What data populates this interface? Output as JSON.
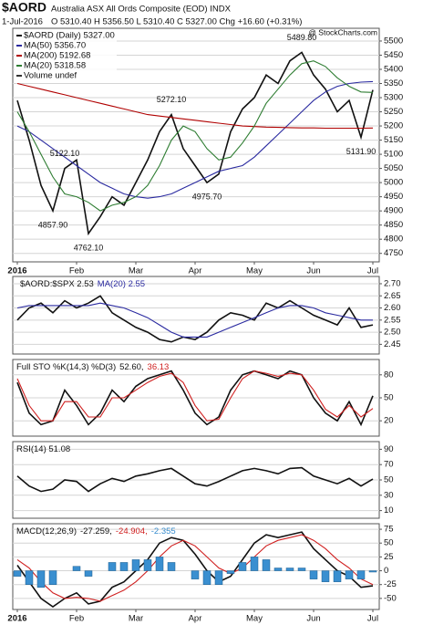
{
  "chart_data": [
    {
      "type": "line",
      "title": "$AORD",
      "subtitle": "Australia ASX All Ords Composite (EOD) INDX",
      "date": "1-Jul-2016",
      "quote": "O 5310.40 H 5356.50 L 5310.40 C 5327.00 Chg +16.60 (+0.31%)",
      "watermark": "@ StockCharts.com",
      "legend": "stack",
      "legend_extra": "Volume undef",
      "annotations": [
        "4857.90",
        "4762.10",
        "5122.10",
        "5272.10",
        "4975.70",
        "5489.80",
        "5131.90"
      ],
      "categories": [
        "2016",
        null,
        null,
        null,
        null,
        "Feb",
        null,
        null,
        null,
        null,
        "Mar",
        null,
        null,
        null,
        null,
        "Apr",
        null,
        null,
        null,
        null,
        "May",
        null,
        null,
        null,
        null,
        "Jun",
        null,
        null,
        null,
        null,
        "Jul"
      ],
      "ylim": [
        4720,
        5545
      ],
      "yticks": [
        4750,
        4800,
        4850,
        4900,
        4950,
        5000,
        5050,
        5100,
        5150,
        5200,
        5250,
        5300,
        5350,
        5400,
        5450,
        5500
      ],
      "grid": true,
      "series": [
        {
          "name": "$AORD (Daily) 5327.00",
          "color": "#111111",
          "values": [
            5290,
            5150,
            4990,
            4900,
            5050,
            5080,
            4820,
            4880,
            4950,
            4920,
            5000,
            5080,
            5180,
            5240,
            5120,
            5060,
            5000,
            5030,
            5180,
            5260,
            5300,
            5380,
            5350,
            5430,
            5460,
            5380,
            5330,
            5250,
            5290,
            5160,
            5327
          ]
        },
        {
          "name": "MA(50) 5356.70",
          "color": "#2a2aa0",
          "values": [
            5200,
            5180,
            5150,
            5120,
            5090,
            5060,
            5030,
            5000,
            4980,
            4960,
            4950,
            4945,
            4950,
            4960,
            4980,
            5000,
            5020,
            5040,
            5050,
            5060,
            5090,
            5130,
            5170,
            5210,
            5250,
            5290,
            5320,
            5340,
            5350,
            5355,
            5356.7
          ]
        },
        {
          "name": "MA(200) 5192.68",
          "color": "#b00000",
          "values": [
            5350,
            5340,
            5330,
            5320,
            5310,
            5300,
            5290,
            5280,
            5270,
            5260,
            5250,
            5240,
            5235,
            5230,
            5225,
            5220,
            5215,
            5210,
            5205,
            5200,
            5198,
            5196,
            5195,
            5194,
            5193,
            5193,
            5192,
            5192,
            5192,
            5192,
            5192.68
          ]
        },
        {
          "name": "MA(20) 5318.58",
          "color": "#2e7d32",
          "values": [
            5250,
            5180,
            5100,
            5020,
            4960,
            4950,
            4930,
            4900,
            4920,
            4930,
            4950,
            4990,
            5060,
            5150,
            5200,
            5180,
            5120,
            5080,
            5090,
            5140,
            5200,
            5280,
            5330,
            5380,
            5420,
            5430,
            5410,
            5370,
            5340,
            5320,
            5318.58
          ]
        }
      ]
    },
    {
      "type": "line",
      "legend": "inline",
      "ylim": [
        2.41,
        2.73
      ],
      "yticks": [
        2.45,
        {
          "value": 2.5,
          "label": "2.50"
        },
        2.55,
        {
          "value": 2.6,
          "label": "2.60"
        },
        2.65,
        {
          "value": 2.7,
          "label": "2.70"
        }
      ],
      "grid": true,
      "series": [
        {
          "name": "$AORD:$SPX 2.53",
          "color": "#111111",
          "values": [
            2.55,
            2.6,
            2.62,
            2.58,
            2.63,
            2.6,
            2.62,
            2.65,
            2.58,
            2.55,
            2.52,
            2.5,
            2.47,
            2.46,
            2.48,
            2.47,
            2.5,
            2.55,
            2.58,
            2.57,
            2.55,
            2.62,
            2.6,
            2.63,
            2.6,
            2.57,
            2.55,
            2.53,
            2.6,
            2.52,
            2.53
          ]
        },
        {
          "name": "MA(20) 2.55",
          "color": "#2a2aa0",
          "values": [
            2.6,
            2.61,
            2.61,
            2.61,
            2.61,
            2.61,
            2.61,
            2.62,
            2.61,
            2.6,
            2.58,
            2.56,
            2.53,
            2.5,
            2.48,
            2.48,
            2.48,
            2.5,
            2.52,
            2.54,
            2.56,
            2.58,
            2.6,
            2.61,
            2.61,
            2.6,
            2.58,
            2.57,
            2.56,
            2.55,
            2.55
          ]
        }
      ]
    },
    {
      "type": "line",
      "title": "Full STO %K(14,3) %D(3)",
      "legend": "inline",
      "ylim": [
        0,
        100
      ],
      "yticks": [
        20,
        50,
        80
      ],
      "grid": true,
      "series": [
        {
          "name": "52.60,",
          "color": "#111111",
          "values": [
            70,
            30,
            15,
            20,
            60,
            40,
            15,
            30,
            60,
            45,
            65,
            75,
            80,
            85,
            60,
            30,
            15,
            25,
            60,
            80,
            85,
            80,
            75,
            85,
            80,
            50,
            30,
            20,
            45,
            15,
            52.6
          ]
        },
        {
          "name": "36.13",
          "color": "#d02020",
          "values": [
            75,
            40,
            20,
            20,
            45,
            45,
            25,
            25,
            50,
            50,
            60,
            70,
            78,
            82,
            70,
            40,
            20,
            22,
            50,
            75,
            85,
            82,
            78,
            82,
            80,
            60,
            35,
            25,
            40,
            25,
            36.13
          ]
        }
      ]
    },
    {
      "type": "line",
      "title": "RSI(14) 51.08",
      "legend": "inline",
      "ylim": [
        0,
        100
      ],
      "yticks": [
        10,
        30,
        50,
        70,
        90
      ],
      "grid": true,
      "series": [
        {
          "color": "#111111",
          "values": [
            55,
            42,
            35,
            38,
            50,
            48,
            35,
            45,
            52,
            48,
            55,
            58,
            62,
            65,
            55,
            45,
            42,
            48,
            55,
            62,
            65,
            62,
            58,
            65,
            66,
            55,
            50,
            45,
            52,
            42,
            51.08
          ]
        }
      ]
    },
    {
      "type": "line",
      "title": "MACD(12,26,9)",
      "legend": "inline",
      "categories": [
        "2016",
        null,
        null,
        null,
        null,
        "Feb",
        null,
        null,
        null,
        null,
        "Mar",
        null,
        null,
        null,
        null,
        "Apr",
        null,
        null,
        null,
        null,
        "May",
        null,
        null,
        null,
        null,
        "Jun",
        null,
        null,
        null,
        null,
        "Jul"
      ],
      "ylim": [
        -70,
        85
      ],
      "yticks": [
        -50,
        -25,
        0,
        25,
        50,
        75
      ],
      "grid": true,
      "series": [
        {
          "name": "-27.259,",
          "color": "#111111",
          "values": [
            10,
            -20,
            -50,
            -65,
            -50,
            -40,
            -60,
            -55,
            -30,
            -20,
            0,
            20,
            50,
            60,
            55,
            30,
            0,
            -20,
            -10,
            20,
            50,
            65,
            60,
            65,
            70,
            40,
            20,
            0,
            -10,
            -30,
            -27.259
          ]
        },
        {
          "name": "-24.904,",
          "color": "#d02020",
          "values": [
            20,
            5,
            -20,
            -40,
            -50,
            -48,
            -50,
            -55,
            -45,
            -35,
            -20,
            0,
            25,
            45,
            55,
            45,
            25,
            5,
            -5,
            5,
            25,
            45,
            55,
            60,
            65,
            55,
            40,
            20,
            5,
            -15,
            -24.904
          ]
        },
        {
          "name": "-2.355",
          "color": "#3a8fd0",
          "style": "bar",
          "values": [
            -10,
            -25,
            -30,
            -25,
            0,
            8,
            -10,
            0,
            15,
            15,
            20,
            20,
            25,
            15,
            0,
            -15,
            -25,
            -25,
            -5,
            15,
            25,
            20,
            5,
            5,
            5,
            -15,
            -20,
            -20,
            -15,
            -15,
            -2.355
          ]
        }
      ]
    }
  ]
}
